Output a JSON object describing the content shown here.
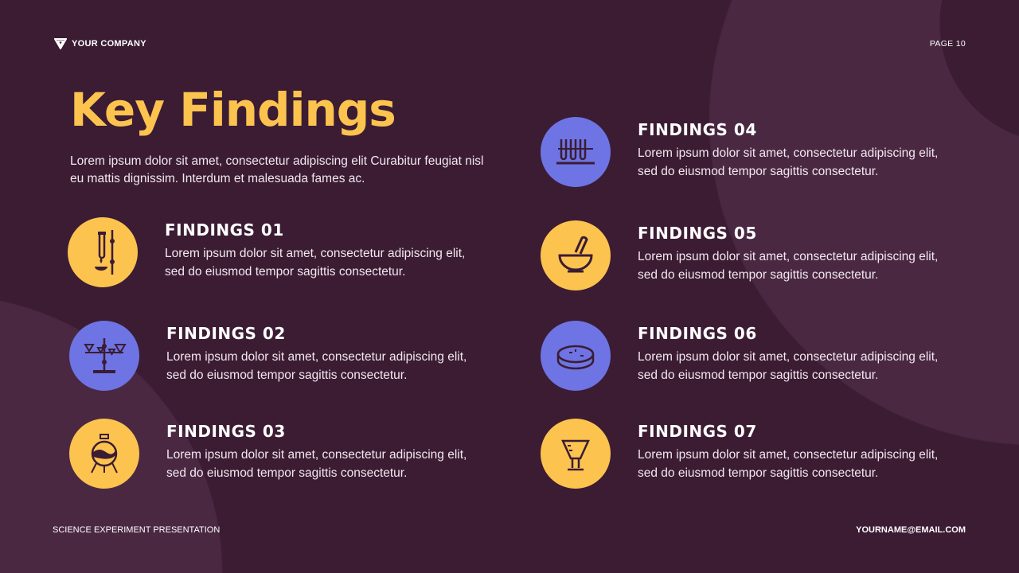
{
  "header": {
    "company": "YOUR COMPANY",
    "page": "PAGE 10"
  },
  "title": "Key Findings",
  "intro": "Lorem ipsum dolor sit amet, consectetur adipiscing elit Curabitur feugiat nisl eu mattis dignissim. Interdum et malesuada fames ac.",
  "colors": {
    "background": "#3b1c33",
    "accent_yellow": "#fcc34f",
    "accent_blue": "#6e74e3"
  },
  "findings": [
    {
      "title": "FINDINGS 01",
      "text": "Lorem ipsum dolor sit amet, consectetur adipiscing elit, sed do eiusmod tempor sagittis consectetur.",
      "icon": "test-tube-burner-icon"
    },
    {
      "title": "FINDINGS 02",
      "text": "Lorem ipsum dolor sit amet, consectetur adipiscing elit, sed do eiusmod tempor sagittis consectetur.",
      "icon": "funnel-stand-icon"
    },
    {
      "title": "FINDINGS 03",
      "text": "Lorem ipsum dolor sit amet, consectetur adipiscing elit, sed do eiusmod tempor sagittis consectetur.",
      "icon": "flask-icon"
    },
    {
      "title": "FINDINGS 04",
      "text": "Lorem ipsum dolor sit amet, consectetur adipiscing elit, sed do eiusmod tempor sagittis consectetur.",
      "icon": "test-tube-rack-icon"
    },
    {
      "title": "FINDINGS 05",
      "text": "Lorem ipsum dolor sit amet, consectetur adipiscing elit, sed do eiusmod tempor sagittis consectetur.",
      "icon": "mortar-pestle-icon"
    },
    {
      "title": "FINDINGS 06",
      "text": "Lorem ipsum dolor sit amet, consectetur adipiscing elit, sed do eiusmod tempor sagittis consectetur.",
      "icon": "petri-dish-icon"
    },
    {
      "title": "FINDINGS 07",
      "text": "Lorem ipsum dolor sit amet, consectetur adipiscing elit, sed do eiusmod tempor sagittis consectetur.",
      "icon": "beaker-icon"
    }
  ],
  "footer": {
    "left": "SCIENCE EXPERIMENT PRESENTATION",
    "right": "YOURNAME@EMAIL.COM"
  }
}
